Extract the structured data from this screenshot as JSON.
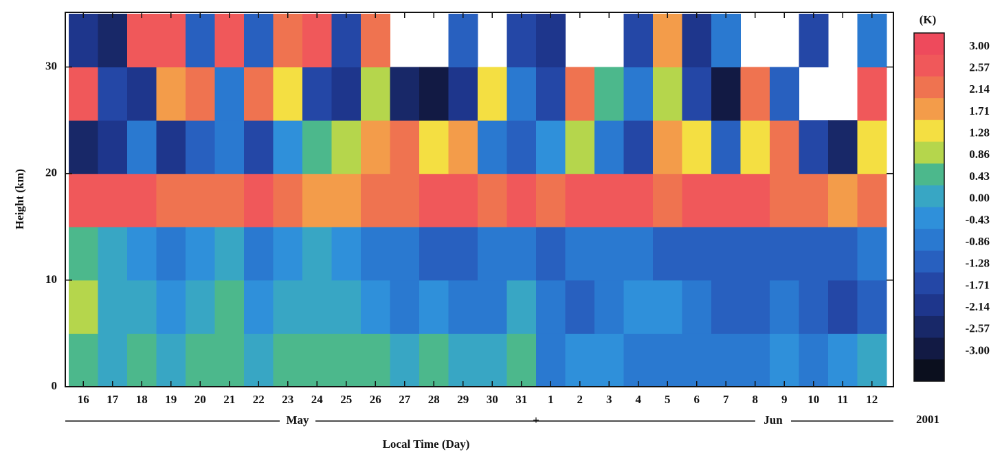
{
  "chart_data": {
    "type": "heatmap",
    "y_label": "Height (km)",
    "x_label": "Local Time (Day)",
    "categories": [
      "16",
      "17",
      "18",
      "19",
      "20",
      "21",
      "22",
      "23",
      "24",
      "25",
      "26",
      "27",
      "28",
      "29",
      "30",
      "31",
      "1",
      "2",
      "3",
      "4",
      "5",
      "6",
      "7",
      "8",
      "9",
      "10",
      "11",
      "12"
    ],
    "months": [
      "May",
      "Jun"
    ],
    "month_separator": "+",
    "year": "2001",
    "ylim": [
      0,
      35
    ],
    "yticks": [
      0,
      10,
      20,
      30
    ],
    "y_bins": [
      0,
      5,
      10,
      15,
      20,
      25,
      30,
      35
    ],
    "z": [
      [
        0.5,
        0.3,
        0.6,
        0.4,
        0.5,
        0.7,
        0.4,
        0.6,
        0.5,
        0.8,
        0.6,
        0.3,
        0.5,
        0.4,
        0.2,
        0.6,
        -0.5,
        -0.4,
        -0.3,
        -0.6,
        -0.5,
        -0.7,
        -0.8,
        -0.6,
        -0.4,
        -0.5,
        -0.3,
        0.2
      ],
      [
        0.9,
        0.4,
        0.3,
        -0.2,
        0.1,
        0.5,
        -0.3,
        0.2,
        0.4,
        0.1,
        -0.2,
        -0.5,
        -0.3,
        -0.6,
        -0.8,
        0.3,
        -0.6,
        -0.9,
        -0.5,
        -0.4,
        -0.3,
        -0.7,
        -0.9,
        -1.0,
        -0.8,
        -1.1,
        -1.3,
        -1.0
      ],
      [
        0.6,
        0.2,
        -0.4,
        -0.6,
        -0.3,
        0.2,
        -0.5,
        -0.2,
        0.1,
        -0.4,
        -0.6,
        -0.8,
        -0.9,
        -1.0,
        -0.7,
        -0.5,
        -0.9,
        -0.8,
        -0.6,
        -0.7,
        -0.9,
        -1.0,
        -1.1,
        -1.2,
        -1.0,
        -0.9,
        -1.2,
        -0.6
      ],
      [
        2.8,
        2.7,
        2.6,
        2.4,
        2.5,
        2.3,
        2.6,
        2.2,
        2.0,
        1.8,
        2.4,
        2.2,
        2.6,
        2.8,
        2.5,
        2.6,
        2.4,
        2.7,
        2.9,
        2.8,
        2.5,
        2.6,
        2.7,
        2.8,
        2.4,
        2.2,
        2.0,
        2.5
      ],
      [
        -2.3,
        -1.8,
        -0.5,
        -2.0,
        -1.2,
        -0.8,
        -1.5,
        -0.3,
        0.6,
        0.9,
        1.8,
        2.2,
        1.4,
        2.0,
        -0.6,
        -1.0,
        -0.4,
        1.2,
        -0.8,
        -1.6,
        2.1,
        1.5,
        -0.9,
        1.6,
        2.3,
        -1.4,
        -2.2,
        1.3
      ],
      [
        2.7,
        -1.6,
        -2.0,
        1.9,
        2.4,
        -0.6,
        2.2,
        1.6,
        -1.3,
        -1.8,
        1.2,
        -2.5,
        -2.8,
        -1.9,
        1.7,
        -0.7,
        -1.5,
        2.4,
        0.5,
        -0.8,
        1.1,
        -1.6,
        -2.7,
        2.3,
        -1.2,
        null,
        null,
        2.6
      ],
      [
        -1.8,
        -2.2,
        2.6,
        2.8,
        -1.1,
        2.9,
        -0.9,
        2.5,
        2.7,
        -1.4,
        2.4,
        null,
        null,
        -1.0,
        null,
        -1.5,
        -2.0,
        null,
        null,
        -1.7,
        1.9,
        -2.1,
        -0.7,
        null,
        null,
        -1.3,
        null,
        -0.8
      ]
    ],
    "colorbar": {
      "unit": "(K)",
      "levels": [
        {
          "value": 3,
          "label": "3.00"
        },
        2.57,
        2.14,
        1.71,
        1.28,
        0.86,
        0.43,
        {
          "value": 0,
          "label": "0.00"
        },
        -0.43,
        -0.86,
        -1.28,
        -1.71,
        -2.14,
        -2.57,
        {
          "value": -3,
          "label": "-3.00"
        }
      ],
      "colors": [
        "#ee4a5c",
        "#f0585a",
        "#ef7350",
        "#f39c4a",
        "#f4df42",
        "#b5d64c",
        "#4cb88c",
        "#38a6c4",
        "#2f90da",
        "#2a79d0",
        "#2860bf",
        "#2447a6",
        "#1e368c",
        "#182868",
        "#121a44",
        "#0b0f1e"
      ]
    }
  }
}
